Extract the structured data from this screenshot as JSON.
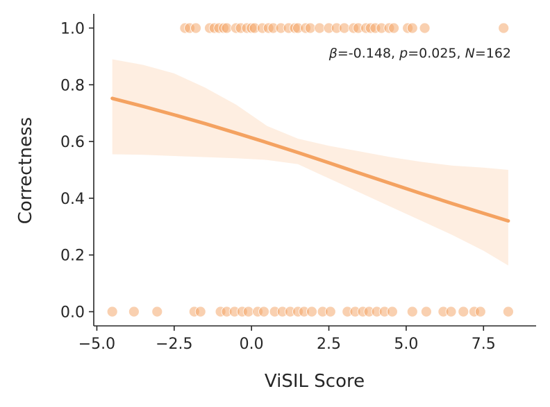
{
  "chart_data": {
    "type": "scatter",
    "title": "",
    "xlabel": "ViSIL Score",
    "ylabel": "Correctness",
    "xlim": [
      -5.1,
      9.2
    ],
    "ylim": [
      -0.05,
      1.05
    ],
    "xticks": [
      -5.0,
      -2.5,
      0.0,
      2.5,
      5.0,
      7.5
    ],
    "xtick_labels": [
      "−5.0",
      "−2.5",
      "0.0",
      "2.5",
      "5.0",
      "7.5"
    ],
    "yticks": [
      0.0,
      0.2,
      0.4,
      0.6,
      0.8,
      1.0
    ],
    "ytick_labels": [
      "0.0",
      "0.2",
      "0.4",
      "0.6",
      "0.8",
      "1.0"
    ],
    "grid": false,
    "annotation": {
      "beta_symbol": "β",
      "beta_text": "=-0.148, ",
      "p_symbol": "p",
      "p_text": "=0.025, ",
      "n_symbol": "N",
      "n_text": "=162"
    },
    "colors": {
      "points": "#f4a261",
      "line": "#f4a261",
      "band": "#fde8d7",
      "axes": "#262626"
    },
    "series": [
      {
        "name": "observations y=1",
        "y": 1,
        "x": [
          -2.15,
          -2.0,
          -1.8,
          -1.35,
          -1.2,
          -1.05,
          -0.9,
          -0.8,
          -0.5,
          -0.35,
          -0.15,
          0.0,
          0.1,
          0.35,
          0.55,
          0.7,
          0.95,
          1.2,
          1.4,
          1.5,
          1.75,
          1.9,
          2.2,
          2.5,
          2.75,
          3.0,
          3.3,
          3.45,
          3.7,
          3.85,
          4.0,
          4.2,
          4.45,
          4.6,
          5.05,
          5.2,
          5.6,
          8.15
        ]
      },
      {
        "name": "observations y=0",
        "y": 0,
        "x": [
          -4.5,
          -3.8,
          -3.05,
          -1.85,
          -1.65,
          -1.0,
          -0.8,
          -0.55,
          -0.3,
          -0.1,
          0.2,
          0.4,
          0.75,
          1.0,
          1.25,
          1.5,
          1.7,
          1.95,
          2.3,
          2.55,
          3.1,
          3.35,
          3.6,
          3.8,
          4.05,
          4.3,
          4.55,
          5.2,
          5.65,
          6.2,
          6.45,
          6.85,
          7.2,
          7.4,
          8.3
        ]
      },
      {
        "name": "logistic fit",
        "x": [
          -4.5,
          -3.5,
          -2.5,
          -1.5,
          -0.5,
          0.5,
          1.5,
          2.5,
          3.5,
          4.5,
          5.5,
          6.5,
          7.5,
          8.3
        ],
        "y": [
          0.752,
          0.724,
          0.694,
          0.663,
          0.63,
          0.596,
          0.561,
          0.525,
          0.488,
          0.452,
          0.416,
          0.381,
          0.347,
          0.32
        ]
      },
      {
        "name": "95% CI",
        "x": [
          -4.5,
          -3.5,
          -2.5,
          -1.5,
          -0.5,
          0.5,
          1.5,
          2.5,
          3.5,
          4.5,
          5.5,
          6.5,
          7.5,
          8.3
        ],
        "lower": [
          0.555,
          0.553,
          0.549,
          0.545,
          0.541,
          0.535,
          0.52,
          0.47,
          0.42,
          0.37,
          0.32,
          0.27,
          0.215,
          0.163
        ],
        "upper": [
          0.89,
          0.87,
          0.84,
          0.79,
          0.73,
          0.655,
          0.61,
          0.585,
          0.565,
          0.545,
          0.528,
          0.515,
          0.508,
          0.5
        ]
      }
    ]
  }
}
